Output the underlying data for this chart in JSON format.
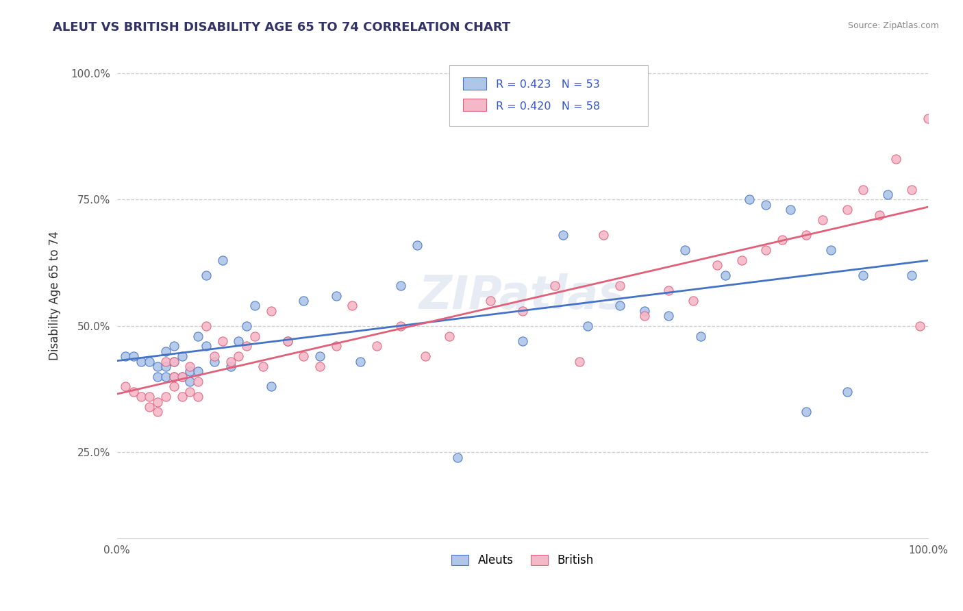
{
  "title": "ALEUT VS BRITISH DISABILITY AGE 65 TO 74 CORRELATION CHART",
  "source_text": "Source: ZipAtlas.com",
  "ylabel": "Disability Age 65 to 74",
  "xmin": 0.0,
  "xmax": 1.0,
  "ymin": 0.08,
  "ymax": 1.04,
  "ytick_vals": [
    0.25,
    0.5,
    0.75,
    1.0
  ],
  "ytick_labels": [
    "25.0%",
    "50.0%",
    "75.0%",
    "100.0%"
  ],
  "legend_R_aleut": "R = 0.423",
  "legend_N_aleut": "N = 53",
  "legend_R_british": "R = 0.420",
  "legend_N_british": "N = 58",
  "aleut_color": "#aec6e8",
  "british_color": "#f4b8c8",
  "aleut_line_color": "#4472c4",
  "british_line_color": "#e0607a",
  "watermark": "ZIPatlas",
  "aleuts_x": [
    0.01,
    0.02,
    0.03,
    0.04,
    0.05,
    0.05,
    0.06,
    0.06,
    0.06,
    0.07,
    0.07,
    0.07,
    0.08,
    0.08,
    0.09,
    0.09,
    0.1,
    0.1,
    0.11,
    0.11,
    0.12,
    0.13,
    0.14,
    0.15,
    0.16,
    0.17,
    0.19,
    0.21,
    0.23,
    0.25,
    0.27,
    0.3,
    0.35,
    0.37,
    0.42,
    0.5,
    0.55,
    0.58,
    0.62,
    0.65,
    0.68,
    0.7,
    0.72,
    0.75,
    0.78,
    0.8,
    0.83,
    0.85,
    0.88,
    0.9,
    0.92,
    0.95,
    0.98
  ],
  "aleuts_y": [
    0.44,
    0.44,
    0.43,
    0.43,
    0.4,
    0.42,
    0.4,
    0.42,
    0.45,
    0.4,
    0.43,
    0.46,
    0.4,
    0.44,
    0.39,
    0.41,
    0.41,
    0.48,
    0.6,
    0.46,
    0.43,
    0.63,
    0.42,
    0.47,
    0.5,
    0.54,
    0.38,
    0.47,
    0.55,
    0.44,
    0.56,
    0.43,
    0.58,
    0.66,
    0.24,
    0.47,
    0.68,
    0.5,
    0.54,
    0.53,
    0.52,
    0.65,
    0.48,
    0.6,
    0.75,
    0.74,
    0.73,
    0.33,
    0.65,
    0.37,
    0.6,
    0.76,
    0.6
  ],
  "british_x": [
    0.01,
    0.02,
    0.03,
    0.04,
    0.04,
    0.05,
    0.05,
    0.06,
    0.06,
    0.07,
    0.07,
    0.07,
    0.08,
    0.08,
    0.09,
    0.09,
    0.1,
    0.1,
    0.11,
    0.12,
    0.13,
    0.14,
    0.15,
    0.16,
    0.17,
    0.18,
    0.19,
    0.21,
    0.23,
    0.25,
    0.27,
    0.29,
    0.32,
    0.35,
    0.38,
    0.41,
    0.46,
    0.5,
    0.54,
    0.57,
    0.6,
    0.62,
    0.65,
    0.68,
    0.71,
    0.74,
    0.77,
    0.8,
    0.82,
    0.85,
    0.87,
    0.9,
    0.92,
    0.94,
    0.96,
    0.98,
    0.99,
    1.0
  ],
  "british_y": [
    0.38,
    0.37,
    0.36,
    0.34,
    0.36,
    0.33,
    0.35,
    0.36,
    0.43,
    0.38,
    0.4,
    0.43,
    0.36,
    0.4,
    0.37,
    0.42,
    0.36,
    0.39,
    0.5,
    0.44,
    0.47,
    0.43,
    0.44,
    0.46,
    0.48,
    0.42,
    0.53,
    0.47,
    0.44,
    0.42,
    0.46,
    0.54,
    0.46,
    0.5,
    0.44,
    0.48,
    0.55,
    0.53,
    0.58,
    0.43,
    0.68,
    0.58,
    0.52,
    0.57,
    0.55,
    0.62,
    0.63,
    0.65,
    0.67,
    0.68,
    0.71,
    0.73,
    0.77,
    0.72,
    0.83,
    0.77,
    0.5,
    0.91
  ]
}
